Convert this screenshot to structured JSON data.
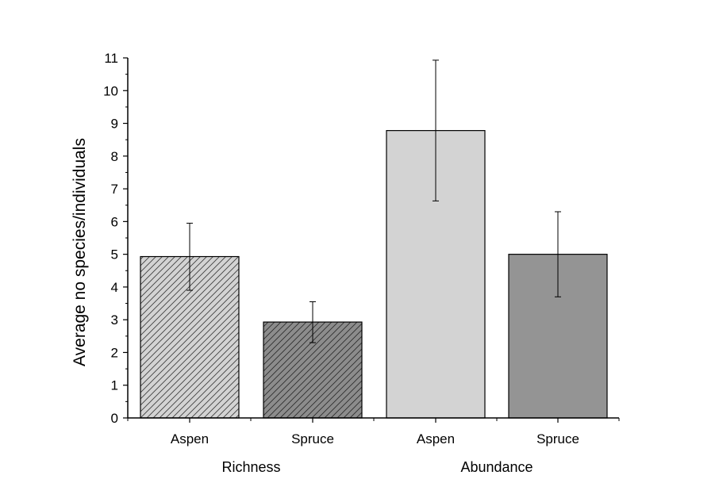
{
  "chart_data": {
    "type": "bar",
    "ylabel": "Average no species/individuals",
    "ylim": [
      0,
      11
    ],
    "y_ticks": [
      "0",
      "1",
      "2",
      "3",
      "4",
      "5",
      "6",
      "7",
      "8",
      "9",
      "10",
      "11"
    ],
    "categories": [
      "Aspen",
      "Spruce",
      "Aspen",
      "Spruce"
    ],
    "groups": [
      {
        "label": "Richness",
        "categories": [
          0,
          1
        ]
      },
      {
        "label": "Abundance",
        "categories": [
          2,
          3
        ]
      }
    ],
    "values": [
      4.93,
      2.93,
      8.78,
      5.0
    ],
    "error": [
      [
        3.9,
        5.95
      ],
      [
        2.3,
        3.55
      ],
      [
        6.63,
        10.93
      ],
      [
        3.7,
        6.3
      ]
    ],
    "colors": [
      "#d3d3d3",
      "#8c8c8c",
      "#d3d3d3",
      "#949494"
    ],
    "hatched": [
      true,
      true,
      false,
      false
    ],
    "grid": false
  }
}
